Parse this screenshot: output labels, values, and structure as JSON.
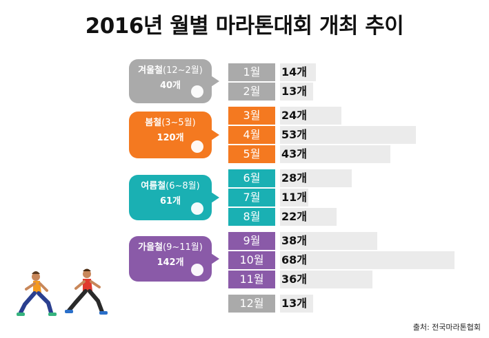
{
  "colors": {
    "winter": "#aaaaaa",
    "spring": "#f47920",
    "summer": "#1ab0b3",
    "autumn": "#8a5aa8",
    "bar": "#ebebeb"
  },
  "chart_data": {
    "type": "bar",
    "title": "2016년 월별 마라톤대회 개최 추이",
    "unit": "개",
    "categories": [
      "1월",
      "2월",
      "3월",
      "4월",
      "5월",
      "6월",
      "7월",
      "8월",
      "9월",
      "10월",
      "11월",
      "12월"
    ],
    "values": [
      14,
      13,
      24,
      53,
      43,
      28,
      11,
      22,
      38,
      68,
      36,
      13
    ],
    "value_labels": [
      "14개",
      "13개",
      "24개",
      "53개",
      "43개",
      "28개",
      "11개",
      "22개",
      "38개",
      "68개",
      "36개",
      "13개"
    ],
    "seasons": [
      {
        "name": "겨울철",
        "range": "(12~2월)",
        "total": "40개",
        "color_key": "winter",
        "icon": "snowman-icon"
      },
      {
        "name": "봄철",
        "range": "(3~5월)",
        "total": "120개",
        "color_key": "spring",
        "icon": "flower-icon"
      },
      {
        "name": "여름철",
        "range": "(6~8월)",
        "total": "61개",
        "color_key": "summer",
        "icon": "sun-icon"
      },
      {
        "name": "가을철",
        "range": "(9~11월)",
        "total": "142개",
        "color_key": "autumn",
        "icon": "leaf-icon"
      }
    ],
    "month_season": [
      "winter",
      "winter",
      "spring",
      "spring",
      "spring",
      "summer",
      "summer",
      "summer",
      "autumn",
      "autumn",
      "autumn",
      "winter"
    ],
    "source": "출처: 전국마라톤협회"
  }
}
